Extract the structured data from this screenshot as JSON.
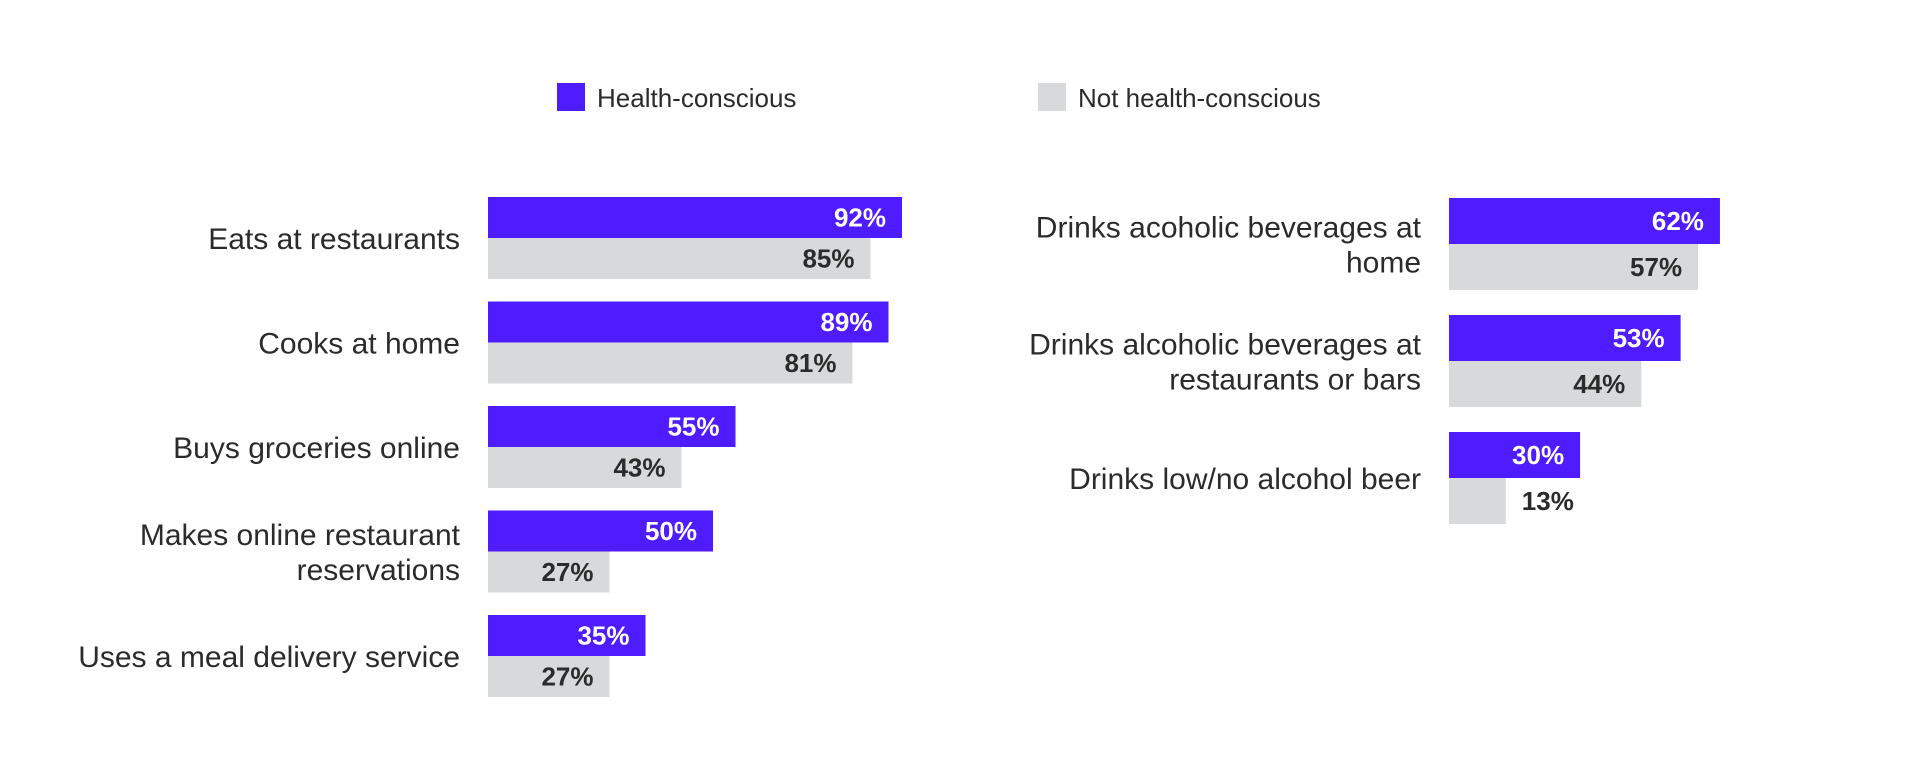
{
  "legend": {
    "health_conscious": "Health-conscious",
    "not_health_conscious": "Not health-conscious"
  },
  "colors": {
    "health_conscious": "#4f1bff",
    "not_health_conscious": "#d7d9da"
  },
  "chart_data": [
    {
      "type": "bar",
      "orientation": "horizontal",
      "categories": [
        [
          "Eats at restaurants"
        ],
        [
          "Cooks at home"
        ],
        [
          "Buys groceries online"
        ],
        [
          "Makes online restaurant",
          "reservations"
        ],
        [
          "Uses a meal delivery service"
        ]
      ],
      "series": [
        {
          "name": "Health-conscious",
          "values": [
            92,
            89,
            55,
            50,
            35
          ],
          "labels": [
            "92%",
            "89%",
            "55%",
            "50%",
            "35%"
          ]
        },
        {
          "name": "Not health-conscious",
          "values": [
            85,
            81,
            43,
            27,
            27
          ],
          "labels": [
            "85%",
            "81%",
            "43%",
            "27%",
            "27%"
          ]
        }
      ],
      "unit": "%",
      "xlim": [
        0,
        100
      ]
    },
    {
      "type": "bar",
      "orientation": "horizontal",
      "categories": [
        [
          "Drinks acoholic beverages at",
          "home"
        ],
        [
          "Drinks alcoholic beverages at",
          "restaurants or bars"
        ],
        [
          "Drinks low/no alcohol beer"
        ]
      ],
      "series": [
        {
          "name": "Health-conscious",
          "values": [
            62,
            53,
            30
          ],
          "labels": [
            "62%",
            "53%",
            "30%"
          ]
        },
        {
          "name": "Not health-conscious",
          "values": [
            57,
            44,
            13
          ],
          "labels": [
            "57%",
            "44%",
            "13%"
          ]
        }
      ],
      "unit": "%",
      "xlim": [
        0,
        100
      ]
    }
  ]
}
